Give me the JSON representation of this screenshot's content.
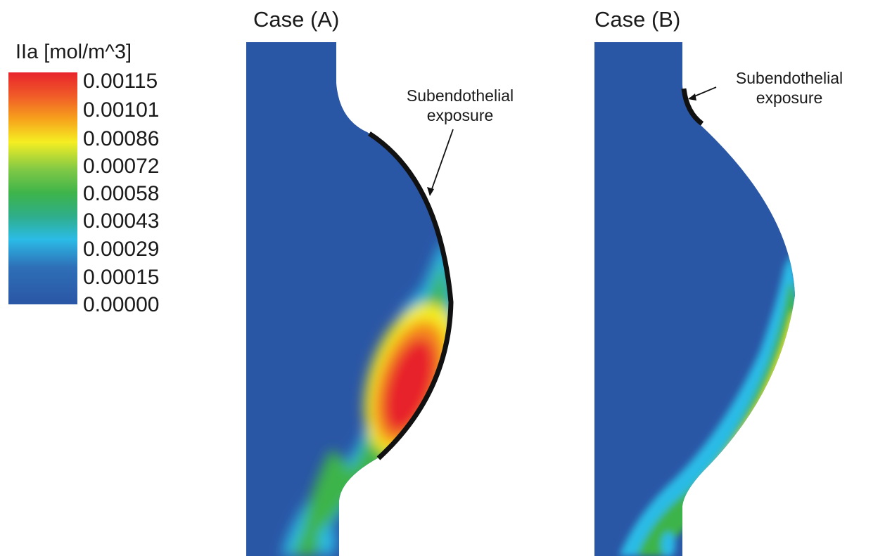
{
  "legend": {
    "title": "IIa [mol/m^3]",
    "ticks": [
      "0.00115",
      "0.00101",
      "0.00086",
      "0.00072",
      "0.00058",
      "0.00043",
      "0.00029",
      "0.00015",
      "0.00000"
    ]
  },
  "panels": [
    {
      "title": "Case (A)",
      "annotation_line1": "Subendothelial",
      "annotation_line2": "exposure"
    },
    {
      "title": "Case (B)",
      "annotation_line1": "Subendothelial",
      "annotation_line2": "exposure"
    }
  ],
  "colors": {
    "background_field": "#2a56a6",
    "max": "#e8242c",
    "orange": "#f58a1f",
    "yellow": "#f5ee22",
    "green": "#3eb44a",
    "cyan": "#2bbbe6",
    "exposure_mark": "#111111"
  }
}
